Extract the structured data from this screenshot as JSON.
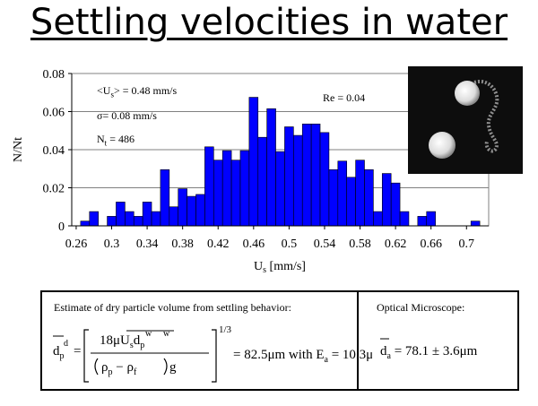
{
  "title": "Settling velocities in water",
  "chart_data": {
    "type": "bar",
    "xlabel": "U_s [mm/s]",
    "xlabel_main": "U",
    "xlabel_sub": "s",
    "xlabel_unit": " [mm/s]",
    "ylabel": "N/N_t",
    "ylabel_text": "N/Nt",
    "xlim": [
      0.255,
      0.725
    ],
    "ylim": [
      0,
      0.08
    ],
    "xticks": [
      "0.26",
      "0.3",
      "0.34",
      "0.38",
      "0.42",
      "0.46",
      "0.5",
      "0.54",
      "0.58",
      "0.62",
      "0.66",
      "0.7"
    ],
    "yticks": [
      "0",
      "0.02",
      "0.04",
      "0.06",
      "0.08"
    ],
    "bin_width": 0.01,
    "bar_color": "#0000ff",
    "x": [
      0.27,
      0.28,
      0.3,
      0.31,
      0.32,
      0.33,
      0.34,
      0.35,
      0.36,
      0.37,
      0.38,
      0.39,
      0.4,
      0.41,
      0.42,
      0.43,
      0.44,
      0.45,
      0.46,
      0.47,
      0.48,
      0.49,
      0.5,
      0.51,
      0.52,
      0.53,
      0.54,
      0.55,
      0.56,
      0.57,
      0.58,
      0.59,
      0.6,
      0.61,
      0.62,
      0.63,
      0.65,
      0.66,
      0.71
    ],
    "values": [
      0.0025,
      0.0075,
      0.005,
      0.0125,
      0.0075,
      0.005,
      0.0125,
      0.0075,
      0.0295,
      0.01,
      0.0195,
      0.0155,
      0.0165,
      0.0415,
      0.0345,
      0.0395,
      0.0345,
      0.0395,
      0.0675,
      0.0465,
      0.0615,
      0.039,
      0.052,
      0.0475,
      0.0535,
      0.0535,
      0.049,
      0.0295,
      0.034,
      0.0255,
      0.0345,
      0.0295,
      0.0075,
      0.0275,
      0.0225,
      0.0075,
      0.005,
      0.0075,
      0.0025
    ]
  },
  "annotations": {
    "mean_prefix": "<U",
    "mean_sub": "s",
    "mean_suffix": "> = 0.48 mm/s",
    "sigma": "σ= 0.08 mm/s",
    "nt_main": "N",
    "nt_sub": "t",
    "nt_suffix": " = 486",
    "reynolds": "Re = 0.04"
  },
  "estimate": {
    "description": "Estimate of dry particle volume from settling behavior:",
    "lhs_symbol": "d",
    "lhs_sup": "d",
    "lhs_sub": "p",
    "numerator": "18μU",
    "num_sup": "w",
    "num_sub": "s",
    "num_d": "d",
    "num_d_sup": "w",
    "num_d_sub": "p",
    "denominator_rho_p": "ρ",
    "denominator_sub_p": "p",
    "denominator_rho_f": "ρ",
    "denominator_sub_f": "f",
    "g": "g",
    "exponent": "1/3",
    "result": "= 82.5μm with E",
    "result_sub": "a",
    "result_tail": " = 10.3μm"
  },
  "optical": {
    "label": "Optical Microscope:",
    "symbol": "d",
    "symbol_sub": "a",
    "value": " = 78.1 ± 3.6μm"
  }
}
